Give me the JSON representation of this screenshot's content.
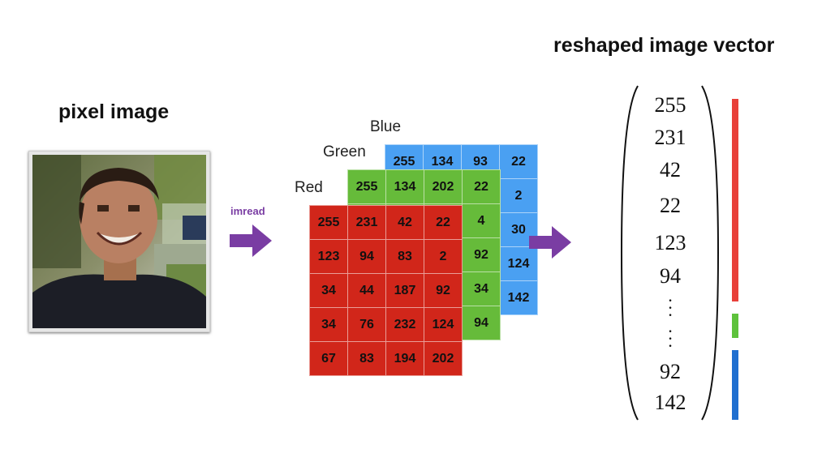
{
  "titles": {
    "pixel_image": "pixel image",
    "reshaped_vector": "reshaped image vector",
    "imread": "imread"
  },
  "channels": {
    "blue": {
      "label": "Blue",
      "color": "#4aa0f2",
      "rows": [
        [
          "255",
          "134",
          "93",
          "22"
        ],
        [
          "",
          "",
          "",
          "2"
        ],
        [
          "",
          "",
          "",
          "30"
        ],
        [
          "",
          "",
          "",
          "124"
        ],
        [
          "",
          "",
          "",
          "142"
        ]
      ]
    },
    "green": {
      "label": "Green",
      "color": "#66bb3a",
      "rows": [
        [
          "255",
          "134",
          "202",
          "22"
        ],
        [
          "",
          "",
          "",
          "4"
        ],
        [
          "",
          "",
          "",
          "92"
        ],
        [
          "",
          "",
          "",
          "34"
        ],
        [
          "",
          "",
          "",
          "94"
        ]
      ]
    },
    "red": {
      "label": "Red",
      "color": "#d1261a",
      "rows": [
        [
          "255",
          "231",
          "42",
          "22"
        ],
        [
          "123",
          "94",
          "83",
          "2"
        ],
        [
          "34",
          "44",
          "187",
          "92"
        ],
        [
          "34",
          "76",
          "232",
          "124"
        ],
        [
          "67",
          "83",
          "194",
          "202"
        ]
      ]
    }
  },
  "vector": {
    "entries": [
      "255",
      "231",
      "42",
      "22",
      "123",
      "94",
      "92",
      "142"
    ],
    "segment_colors": {
      "red": "#e8403a",
      "green": "#5ec23c",
      "blue": "#1f6fd0"
    }
  },
  "icons": {
    "arrow": "right-arrow-icon",
    "photo": "person-photo"
  }
}
